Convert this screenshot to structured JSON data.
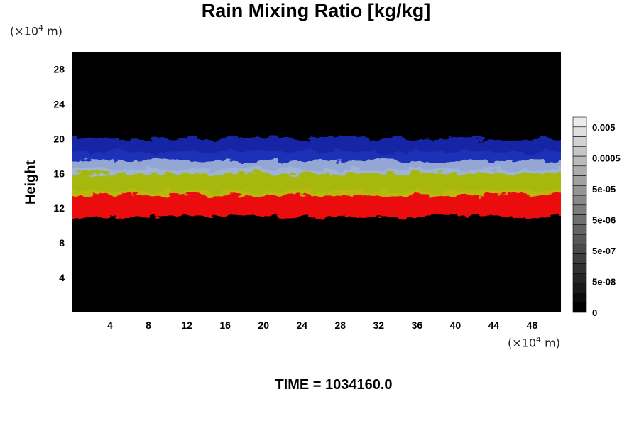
{
  "chart_data": {
    "type": "heatmap",
    "title": "Rain Mixing Ratio [kg/kg]",
    "ylabel": "Height",
    "y_unit": "(×10⁴ m)",
    "x_unit": "(×10⁴ m)",
    "xlim": [
      0,
      51
    ],
    "ylim": [
      0,
      30
    ],
    "x_ticks": [
      4,
      8,
      12,
      16,
      20,
      24,
      28,
      32,
      36,
      40,
      44,
      48
    ],
    "y_ticks": [
      4,
      8,
      12,
      16,
      20,
      24,
      28
    ],
    "background_color": "#000000",
    "layers": [
      {
        "color": "#ff1010",
        "y_range": [
          11,
          14
        ],
        "x_range": [
          0,
          51
        ]
      },
      {
        "color": "#b4c810",
        "y_range": [
          13.5,
          16.5
        ],
        "x_range": [
          0,
          51
        ]
      },
      {
        "color": "#a0b4e6",
        "y_range": [
          16,
          18.5
        ],
        "x_range": [
          0,
          51
        ]
      },
      {
        "color": "#1428b4",
        "y_range": [
          17.5,
          20
        ],
        "x_range": [
          0,
          51
        ]
      }
    ],
    "colorbar": {
      "labels": [
        "0.005",
        "0.0005",
        "5e-05",
        "5e-06",
        "5e-07",
        "5e-08",
        "0"
      ],
      "range": [
        0,
        0.05
      ],
      "scale": "log",
      "levels": 20,
      "colors": [
        "#000000",
        "#ffffff"
      ]
    }
  },
  "footer": {
    "time_text": "TIME = 1034160.0"
  }
}
